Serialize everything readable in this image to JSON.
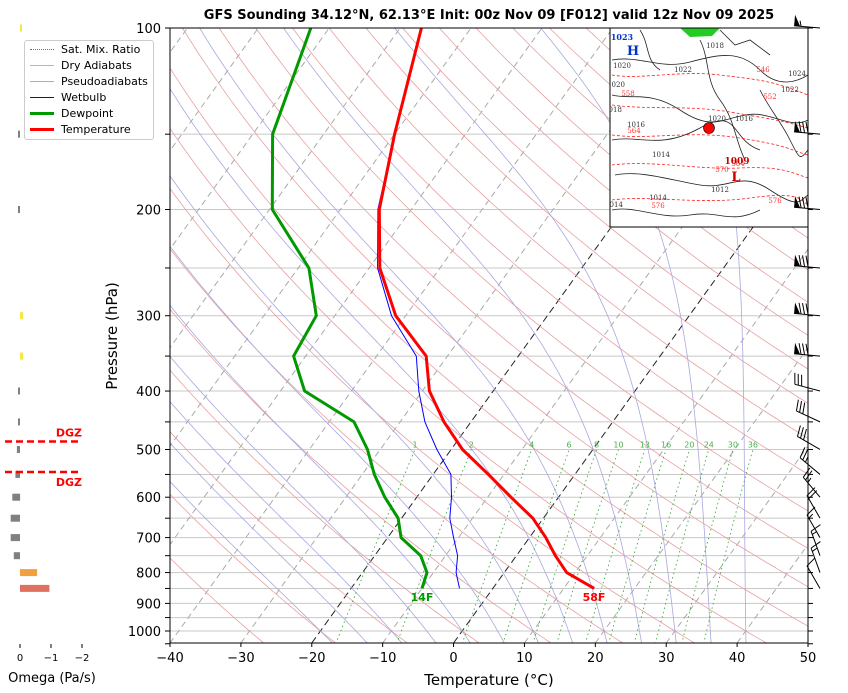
{
  "chart_data": {
    "type": "line",
    "title": "GFS Sounding 34.12°N, 62.13°E Init: 00z Nov 09 [F012] valid 12z Nov 09 2025",
    "xlabel": "Temperature (°C)",
    "ylabel": "Pressure (hPa)",
    "xlim": [
      -40,
      50
    ],
    "ylim": [
      1050,
      100
    ],
    "x_ticks": [
      "−40",
      "−30",
      "−20",
      "−10",
      "0",
      "10",
      "20",
      "30",
      "40",
      "50"
    ],
    "x_tick_values": [
      -40,
      -30,
      -20,
      -10,
      0,
      10,
      20,
      30,
      40,
      50
    ],
    "y_ticks": [
      "100",
      "200",
      "300",
      "400",
      "500",
      "600",
      "700",
      "800",
      "900",
      "1000"
    ],
    "y_tick_values": [
      100,
      200,
      300,
      400,
      500,
      600,
      700,
      800,
      900,
      1000
    ],
    "pressure": [
      100,
      150,
      200,
      250,
      300,
      350,
      400,
      450,
      500,
      550,
      600,
      650,
      700,
      750,
      800,
      850
    ],
    "series": [
      {
        "name": "Temperature",
        "color": "#ff0000",
        "values": [
          -67,
          -60,
          -54.5,
          -48.5,
          -41.4,
          -33,
          -29,
          -23.8,
          -18.4,
          -12.2,
          -6.7,
          -1.5,
          2.3,
          5.5,
          8.8,
          14.3
        ]
      },
      {
        "name": "Dewpoint",
        "color": "#009900",
        "values": [
          -82.6,
          -77.2,
          -69.6,
          -58.5,
          -52.6,
          -51.7,
          -46.6,
          -36.5,
          -31.8,
          -28.3,
          -24.5,
          -20.5,
          -18.1,
          -13.5,
          -10.9,
          -10
        ]
      },
      {
        "name": "Wetbulb",
        "color": "#0000ff",
        "values": [
          -67,
          -60,
          -54.7,
          -48.8,
          -42,
          -34.4,
          -30.5,
          -26.5,
          -22,
          -17.5,
          -15.1,
          -13.2,
          -10.7,
          -8.3,
          -6.8,
          -4.7
        ]
      }
    ],
    "legend": {
      "position": "top-left",
      "entries": [
        {
          "label": "Sat. Mix. Ratio",
          "color": "#2ca02c",
          "style": "dotted"
        },
        {
          "label": "Dry Adiabats",
          "color": "#e8a0a0",
          "style": "solid"
        },
        {
          "label": "Pseudoadiabats",
          "color": "#a0a0e0",
          "style": "solid"
        },
        {
          "label": "Wetbulb",
          "color": "#0000ff",
          "style": "solid"
        },
        {
          "label": "Dewpoint",
          "color": "#009900",
          "style": "thick"
        },
        {
          "label": "Temperature",
          "color": "#ff0000",
          "style": "thick"
        }
      ]
    },
    "mixing_ratio_labels": [
      "1",
      "2",
      "4",
      "6",
      "8",
      "10",
      "13",
      "16",
      "20",
      "24",
      "30",
      "36"
    ],
    "mixing_ratio_values": [
      1,
      2,
      4,
      6,
      8,
      10,
      13,
      16,
      20,
      24,
      30,
      36
    ],
    "surface_labels": {
      "dewpoint": "14F",
      "temperature": "58F"
    },
    "omega": {
      "xlabel": "Omega (Pa/s)",
      "x_ticks": [
        "0",
        "−1",
        "−2"
      ],
      "x_tick_values": [
        0,
        -1,
        -2
      ],
      "pressure": [
        100,
        150,
        200,
        300,
        350,
        400,
        450,
        500,
        550,
        600,
        650,
        700,
        750,
        800,
        850
      ],
      "values": [
        -0.05,
        0.06,
        0.03,
        -0.1,
        -0.1,
        0.03,
        0.06,
        0.1,
        0.15,
        0.25,
        0.3,
        0.3,
        0.2,
        -0.55,
        -0.95
      ],
      "dgz_label": "DGZ",
      "dgz_top": 485,
      "dgz_bottom": 545
    },
    "wind_pressure": [
      100,
      150,
      200,
      250,
      300,
      350,
      400,
      450,
      500,
      550,
      600,
      650,
      700,
      750,
      800,
      850
    ],
    "wind_speed_kt": [
      55,
      80,
      80,
      80,
      80,
      80,
      30,
      30,
      30,
      25,
      25,
      20,
      15,
      15,
      15,
      10
    ],
    "wind_dir_deg": [
      275,
      275,
      275,
      275,
      275,
      275,
      285,
      295,
      300,
      310,
      320,
      330,
      330,
      340,
      340,
      330
    ]
  },
  "inset_map": {
    "labels": [
      "1023",
      "H",
      "1018",
      "1020",
      "1022",
      "1020",
      "558",
      "1018",
      "1016",
      "564",
      "1020",
      "1016",
      "1014",
      "1014",
      "564",
      "1009",
      "L",
      "570",
      "1012",
      "1014",
      "576",
      "576",
      "546",
      "552",
      "1024",
      "1022"
    ]
  }
}
